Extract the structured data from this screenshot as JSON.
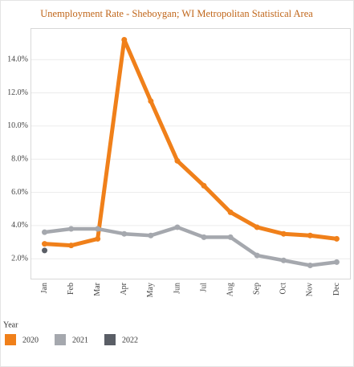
{
  "chart_data": {
    "type": "line",
    "title": "Unemployment Rate - Sheboygan; WI Metropolitan Statistical Area",
    "categories": [
      "Jan",
      "Feb",
      "Mar",
      "Apr",
      "May",
      "Jun",
      "Jul",
      "Aug",
      "Sep",
      "Oct",
      "Nov",
      "Dec"
    ],
    "series": [
      {
        "name": "2020",
        "color": "#f0801a",
        "values": [
          2.9,
          2.8,
          3.2,
          15.2,
          11.5,
          7.9,
          6.4,
          4.8,
          3.9,
          3.5,
          3.4,
          3.2
        ]
      },
      {
        "name": "2021",
        "color": "#a5a8ae",
        "values": [
          3.6,
          3.8,
          3.8,
          3.5,
          3.4,
          3.9,
          3.3,
          3.3,
          2.2,
          1.9,
          1.6,
          1.8
        ]
      },
      {
        "name": "2022",
        "color": "#5a5e66",
        "values": [
          2.5,
          null,
          null,
          null,
          null,
          null,
          null,
          null,
          null,
          null,
          null,
          null
        ]
      }
    ],
    "legend_title": "Year",
    "ylim": [
      0.8,
      15.9
    ],
    "yticks": [
      {
        "value": 2,
        "label": "2.0%"
      },
      {
        "value": 4,
        "label": "4.0%"
      },
      {
        "value": 6,
        "label": "6.0%"
      },
      {
        "value": 8,
        "label": "8.0%"
      },
      {
        "value": 10,
        "label": "10.0%"
      },
      {
        "value": 12,
        "label": "12.0%"
      },
      {
        "value": 14,
        "label": "14.0%"
      }
    ],
    "grid": true
  }
}
